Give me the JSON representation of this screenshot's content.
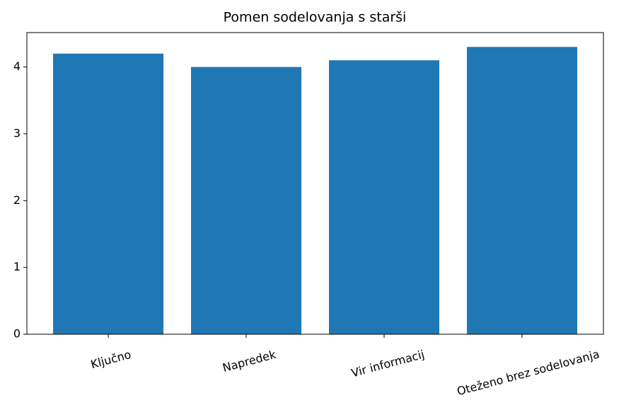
{
  "chart_data": {
    "type": "bar",
    "title": "Pomen sodelovanja s starši",
    "categories": [
      "Ključno",
      "Napredek",
      "Vir informacij",
      "Oteženo brez sodelovanja"
    ],
    "values": [
      4.2,
      4.0,
      4.1,
      4.3
    ],
    "color": "#1f77b4",
    "ylim": [
      0,
      4.515
    ],
    "yticks": [
      0,
      1,
      2,
      3,
      4
    ],
    "grid": false
  }
}
